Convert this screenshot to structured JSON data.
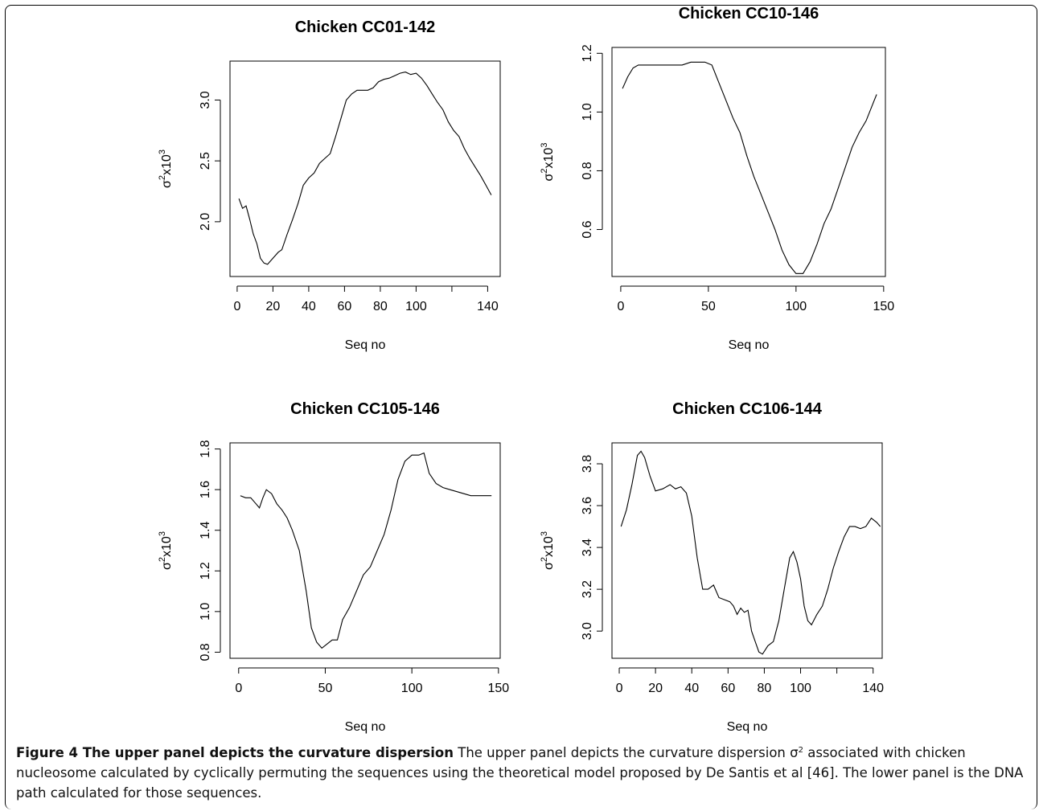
{
  "caption": {
    "label": "Figure 4",
    "heading": "The upper panel depicts the curvature dispersion",
    "text_before": "The upper panel depicts the curvature dispersion σ",
    "text_sup": "2",
    "text_after": " associated with chicken nucleosome calculated by cyclically permuting the sequences using the theoretical model proposed by De Santis et al [46]. The lower panel is the DNA path calculated for those sequences."
  },
  "chart_data": [
    {
      "type": "line",
      "title": "Chicken  CC01-142",
      "xlabel": "Seq no",
      "ylabel_base": "σ",
      "ylabel_mid": "x10",
      "ylabel_sup1": "2",
      "ylabel_sup2": "3",
      "xlim": [
        -4,
        147
      ],
      "ylim": [
        1.55,
        3.32
      ],
      "xticks": [
        0,
        20,
        40,
        60,
        80,
        100,
        120,
        140
      ],
      "xtick_labels": [
        "0",
        "20",
        "40",
        "60",
        "80",
        "100",
        "",
        "140"
      ],
      "yticks": [
        2.0,
        2.5,
        3.0
      ],
      "ytick_labels": [
        "2.0",
        "2.5",
        "3.0"
      ],
      "x": [
        1,
        3,
        5,
        7,
        9,
        11,
        13,
        15,
        17,
        20,
        23,
        25,
        28,
        31,
        34,
        37,
        40,
        43,
        46,
        49,
        52,
        55,
        58,
        61,
        64,
        67,
        70,
        73,
        76,
        79,
        82,
        85,
        88,
        91,
        94,
        97,
        100,
        103,
        106,
        109,
        112,
        115,
        118,
        121,
        124,
        127,
        130,
        133,
        136,
        139,
        142
      ],
      "y": [
        2.19,
        2.11,
        2.13,
        2.02,
        1.9,
        1.82,
        1.7,
        1.66,
        1.65,
        1.7,
        1.75,
        1.77,
        1.9,
        2.02,
        2.15,
        2.3,
        2.36,
        2.4,
        2.48,
        2.52,
        2.56,
        2.7,
        2.85,
        3.0,
        3.05,
        3.08,
        3.08,
        3.08,
        3.1,
        3.15,
        3.17,
        3.18,
        3.2,
        3.22,
        3.23,
        3.21,
        3.22,
        3.18,
        3.12,
        3.05,
        2.98,
        2.92,
        2.82,
        2.75,
        2.7,
        2.6,
        2.52,
        2.45,
        2.38,
        2.3,
        2.22
      ]
    },
    {
      "type": "line",
      "title": "Chicken  CC10-146",
      "xlabel": "Seq no",
      "ylabel_base": "σ",
      "ylabel_mid": "x10",
      "ylabel_sup1": "2",
      "ylabel_sup2": "3",
      "xlim": [
        -5,
        151
      ],
      "ylim": [
        0.44,
        1.22
      ],
      "xticks": [
        0,
        50,
        100,
        150
      ],
      "xtick_labels": [
        "0",
        "50",
        "100",
        "150"
      ],
      "yticks": [
        0.6,
        0.8,
        1.0,
        1.2
      ],
      "ytick_labels": [
        "0.6",
        "0.8",
        "1.0",
        "1.2"
      ],
      "x": [
        1,
        4,
        7,
        10,
        14,
        20,
        25,
        30,
        35,
        40,
        44,
        48,
        52,
        56,
        60,
        64,
        68,
        72,
        76,
        80,
        84,
        88,
        92,
        96,
        100,
        104,
        108,
        112,
        116,
        120,
        124,
        128,
        132,
        136,
        140,
        144,
        146
      ],
      "y": [
        1.08,
        1.12,
        1.15,
        1.16,
        1.16,
        1.16,
        1.16,
        1.16,
        1.16,
        1.17,
        1.17,
        1.17,
        1.16,
        1.1,
        1.04,
        0.98,
        0.93,
        0.85,
        0.78,
        0.72,
        0.66,
        0.6,
        0.53,
        0.48,
        0.45,
        0.45,
        0.49,
        0.55,
        0.62,
        0.67,
        0.74,
        0.81,
        0.88,
        0.93,
        0.97,
        1.03,
        1.06
      ]
    },
    {
      "type": "line",
      "title": "Chicken  CC105-146",
      "xlabel": "Seq no",
      "ylabel_base": "σ",
      "ylabel_mid": "x10",
      "ylabel_sup1": "2",
      "ylabel_sup2": "3",
      "xlim": [
        -5,
        151
      ],
      "ylim": [
        0.77,
        1.83
      ],
      "xticks": [
        0,
        50,
        100,
        150
      ],
      "xtick_labels": [
        "0",
        "50",
        "100",
        "150"
      ],
      "yticks": [
        0.8,
        1.0,
        1.2,
        1.4,
        1.6,
        1.8
      ],
      "ytick_labels": [
        "0.8",
        "1.0",
        "1.2",
        "1.4",
        "1.6",
        "1.8"
      ],
      "x": [
        1,
        4,
        7,
        10,
        12,
        14,
        16,
        19,
        22,
        25,
        28,
        31,
        35,
        39,
        42,
        45,
        48,
        51,
        54,
        57,
        60,
        64,
        68,
        72,
        76,
        80,
        84,
        88,
        92,
        96,
        100,
        104,
        107,
        110,
        114,
        118,
        122,
        126,
        130,
        134,
        138,
        142,
        146
      ],
      "y": [
        1.57,
        1.56,
        1.56,
        1.53,
        1.51,
        1.56,
        1.6,
        1.58,
        1.53,
        1.5,
        1.46,
        1.4,
        1.3,
        1.1,
        0.92,
        0.85,
        0.82,
        0.84,
        0.86,
        0.86,
        0.96,
        1.02,
        1.1,
        1.18,
        1.22,
        1.3,
        1.38,
        1.5,
        1.65,
        1.74,
        1.77,
        1.77,
        1.78,
        1.68,
        1.63,
        1.61,
        1.6,
        1.59,
        1.58,
        1.57,
        1.57,
        1.57,
        1.57
      ]
    },
    {
      "type": "line",
      "title": "Chicken  CC106-144",
      "xlabel": "Seq no",
      "ylabel_base": "σ",
      "ylabel_mid": "x10",
      "ylabel_sup1": "2",
      "ylabel_sup2": "3",
      "xlim": [
        -4,
        145
      ],
      "ylim": [
        2.87,
        3.9
      ],
      "xticks": [
        0,
        20,
        40,
        60,
        80,
        100,
        120,
        140
      ],
      "xtick_labels": [
        "0",
        "20",
        "40",
        "60",
        "80",
        "100",
        "",
        "140"
      ],
      "yticks": [
        3.0,
        3.2,
        3.4,
        3.6,
        3.8
      ],
      "ytick_labels": [
        "3.0",
        "3.2",
        "3.4",
        "3.6",
        "3.8"
      ],
      "x": [
        1,
        4,
        7,
        10,
        12,
        14,
        17,
        20,
        24,
        28,
        31,
        34,
        37,
        40,
        43,
        46,
        49,
        52,
        55,
        58,
        61,
        63,
        65,
        67,
        69,
        71,
        73,
        75,
        77,
        79,
        82,
        85,
        88,
        91,
        94,
        96,
        98,
        100,
        102,
        104,
        106,
        109,
        112,
        115,
        118,
        121,
        124,
        127,
        130,
        133,
        136,
        139,
        142,
        144
      ],
      "y": [
        3.5,
        3.58,
        3.7,
        3.84,
        3.86,
        3.83,
        3.74,
        3.67,
        3.68,
        3.7,
        3.68,
        3.69,
        3.66,
        3.55,
        3.35,
        3.2,
        3.2,
        3.22,
        3.16,
        3.15,
        3.14,
        3.12,
        3.08,
        3.11,
        3.09,
        3.1,
        3.0,
        2.95,
        2.9,
        2.89,
        2.93,
        2.95,
        3.05,
        3.2,
        3.35,
        3.38,
        3.33,
        3.25,
        3.12,
        3.05,
        3.03,
        3.08,
        3.12,
        3.2,
        3.3,
        3.38,
        3.45,
        3.5,
        3.5,
        3.49,
        3.5,
        3.54,
        3.52,
        3.5
      ]
    }
  ]
}
